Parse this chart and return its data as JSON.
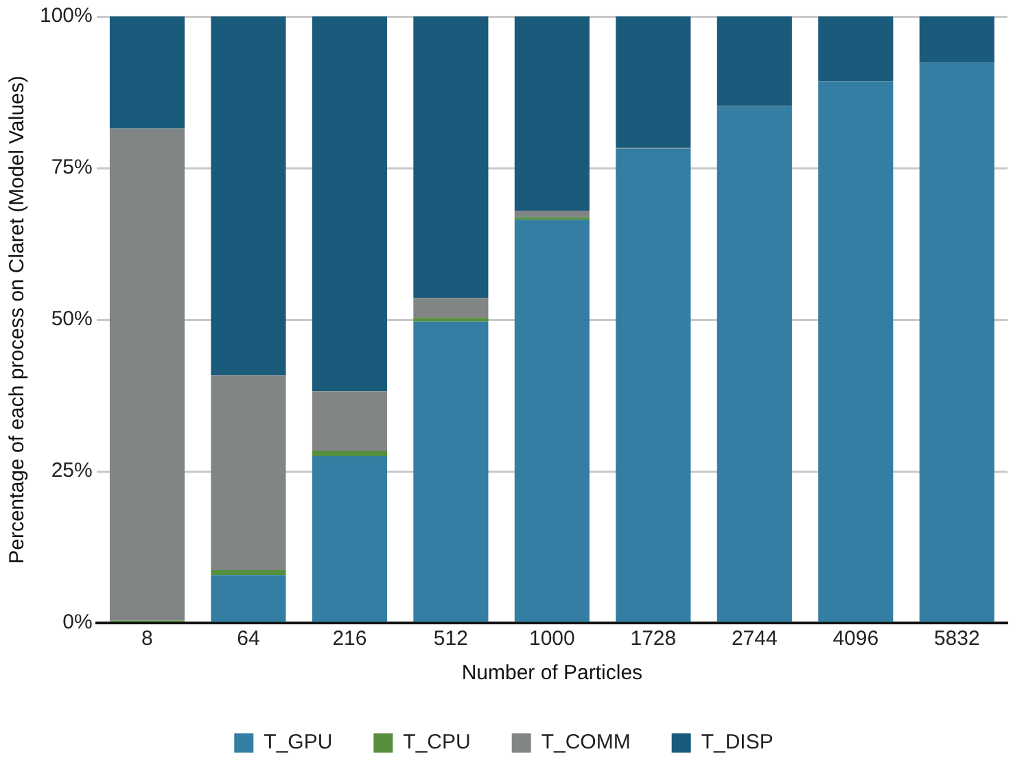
{
  "chart_data": {
    "type": "bar",
    "stacked": true,
    "xlabel": "Number of Particles",
    "ylabel": "Percentage of each process on Claret (Model Values)",
    "categories": [
      "8",
      "64",
      "216",
      "512",
      "1000",
      "1728",
      "2744",
      "4096",
      "5832"
    ],
    "series": [
      {
        "name": "T_GPU",
        "color": "#337ea2",
        "values": [
          0,
          7.9,
          27.5,
          49.7,
          66.5,
          78.2,
          85.2,
          89.3,
          92.4
        ]
      },
      {
        "name": "T_CPU",
        "color": "#568f3e",
        "values": [
          0.4,
          0.8,
          0.9,
          0.6,
          0.4,
          0,
          0,
          0,
          0
        ]
      },
      {
        "name": "T_COMM",
        "color": "#828586",
        "values": [
          81.1,
          32.1,
          9.8,
          3.3,
          1.1,
          0.1,
          0.1,
          0,
          0
        ]
      },
      {
        "name": "T_DISP",
        "color": "#1a5a7a",
        "values": [
          18.5,
          59.2,
          61.8,
          46.4,
          32.0,
          21.7,
          14.7,
          10.7,
          7.6
        ]
      }
    ],
    "ylim": [
      0,
      100
    ],
    "yticks": [
      {
        "value": 0,
        "label": "0%"
      },
      {
        "value": 25,
        "label": "25%"
      },
      {
        "value": 50,
        "label": "50%"
      },
      {
        "value": 75,
        "label": "75%"
      },
      {
        "value": 100,
        "label": "100%"
      }
    ],
    "grid": "y",
    "legend": "bottom"
  }
}
